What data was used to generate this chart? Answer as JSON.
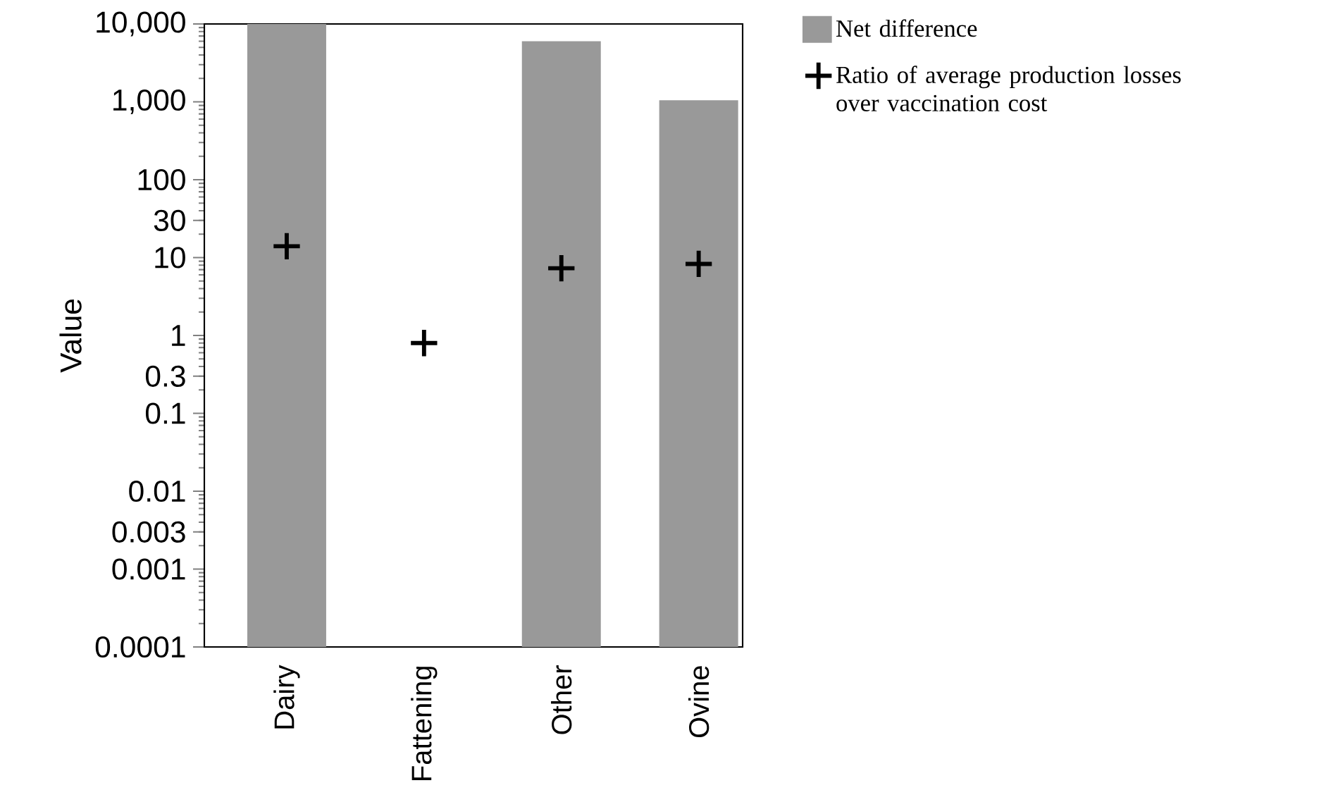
{
  "chart_data": {
    "type": "bar",
    "ylabel": "Value",
    "log": "y",
    "categories": [
      "Dairy",
      "Fattening",
      "Other",
      "Ovine"
    ],
    "ylim": [
      0.0001,
      10000
    ],
    "yticks": [
      {
        "value": 0.0001,
        "label": "0.0001"
      },
      {
        "value": 0.001,
        "label": "0.001"
      },
      {
        "value": 0.003,
        "label": "0.003"
      },
      {
        "value": 0.01,
        "label": "0.01"
      },
      {
        "value": 0.1,
        "label": "0.1"
      },
      {
        "value": 0.3,
        "label": "0.3"
      },
      1,
      10,
      {
        "value": 30,
        "label": "30"
      },
      100,
      {
        "value": 1000,
        "label": "1,000"
      },
      {
        "value": 10000,
        "label": "10,000"
      }
    ],
    "legend": "top right",
    "grid": false,
    "series": [
      {
        "name": "Net difference",
        "color": "#999999",
        "values": [
          10000,
          null,
          6000,
          1050
        ]
      },
      {
        "name": "Ratio of average production losses over vaccination cost",
        "type": "scatter",
        "marker": "cross",
        "color": "#000000",
        "values": [
          14,
          0.8,
          7.3,
          8.3
        ]
      }
    ]
  }
}
